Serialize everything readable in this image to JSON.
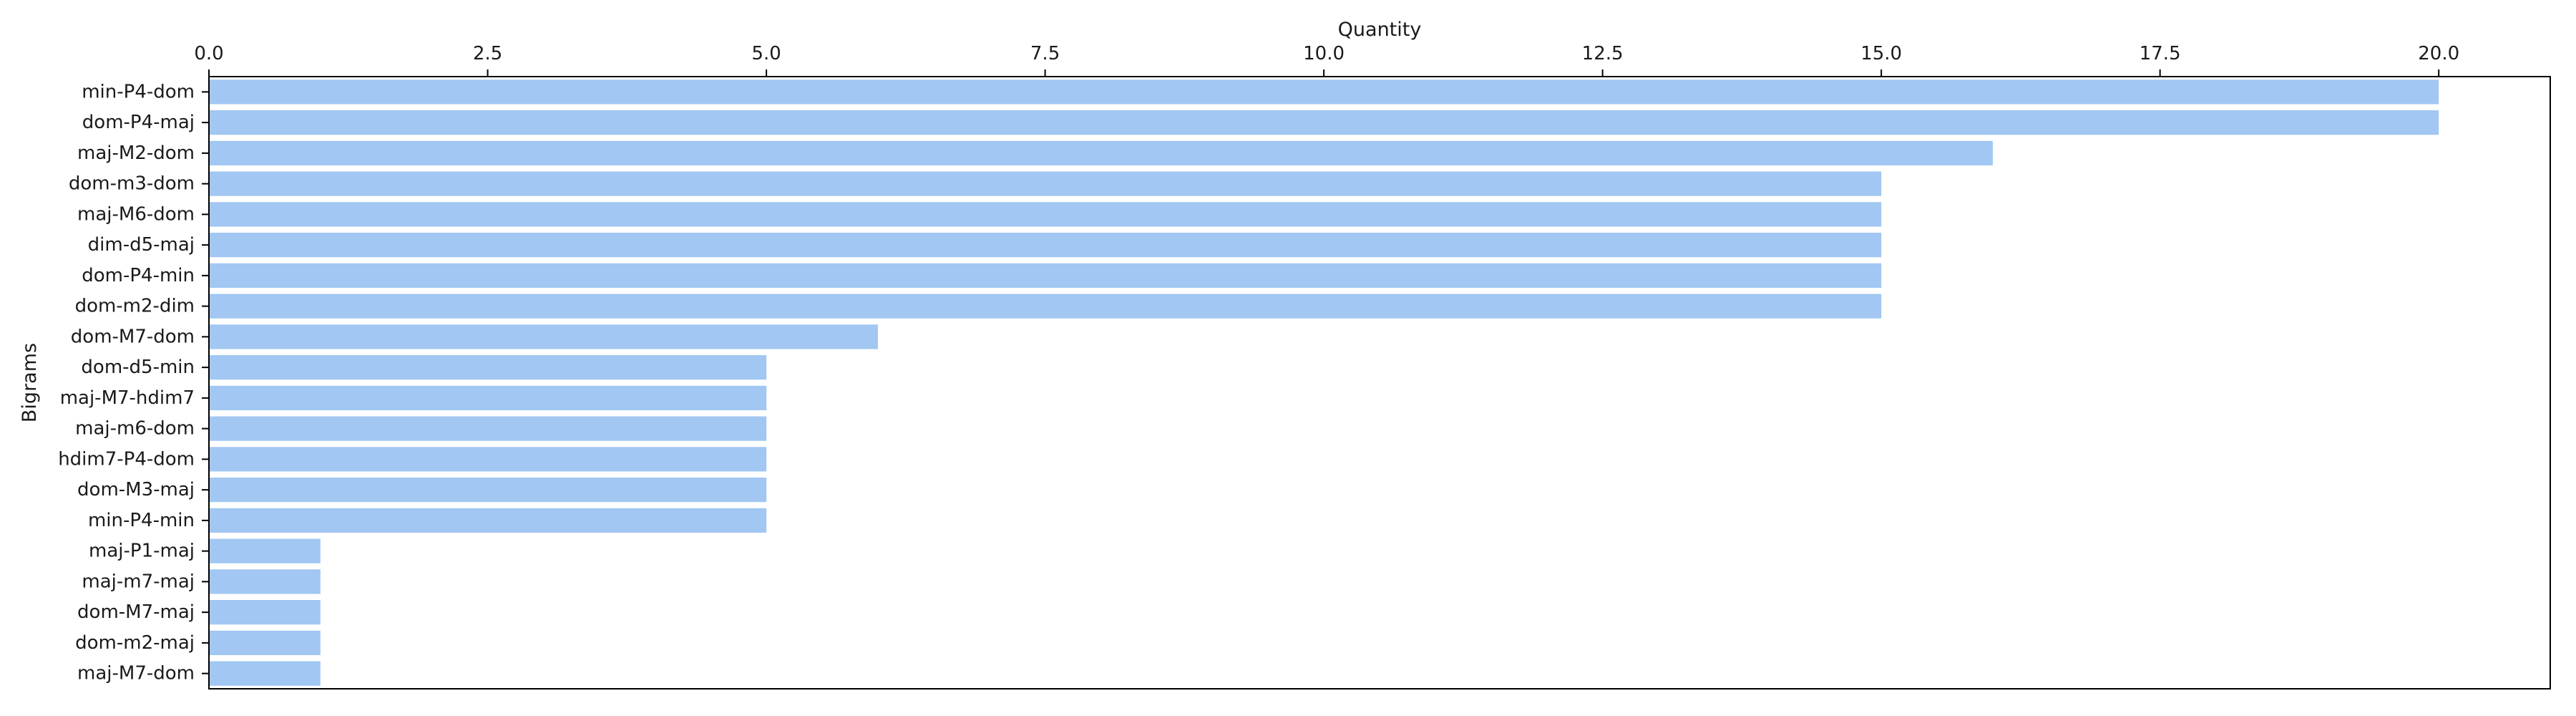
{
  "chart_data": {
    "type": "bar",
    "orientation": "horizontal",
    "title": "",
    "xlabel": "Quantity",
    "ylabel": "Bigrams",
    "x_axis_position": "top",
    "xlim": [
      0,
      21
    ],
    "xticks": [
      "0.0",
      "2.5",
      "5.0",
      "7.5",
      "10.0",
      "12.5",
      "15.0",
      "17.5",
      "20.0"
    ],
    "categories": [
      "min-P4-dom",
      "dom-P4-maj",
      "maj-M2-dom",
      "dom-m3-dom",
      "maj-M6-dom",
      "dim-d5-maj",
      "dom-P4-min",
      "dom-m2-dim",
      "dom-M7-dom",
      "dom-d5-min",
      "maj-M7-hdim7",
      "maj-m6-dom",
      "hdim7-P4-dom",
      "dom-M3-maj",
      "min-P4-min",
      "maj-P1-maj",
      "maj-m7-maj",
      "dom-M7-maj",
      "dom-m2-maj",
      "maj-M7-dom"
    ],
    "values": [
      20,
      20,
      16,
      15,
      15,
      15,
      15,
      15,
      6,
      5,
      5,
      5,
      5,
      5,
      5,
      1,
      1,
      1,
      1,
      1
    ],
    "grid": false,
    "legend": "none",
    "bar_color": "#a1c7f2"
  }
}
